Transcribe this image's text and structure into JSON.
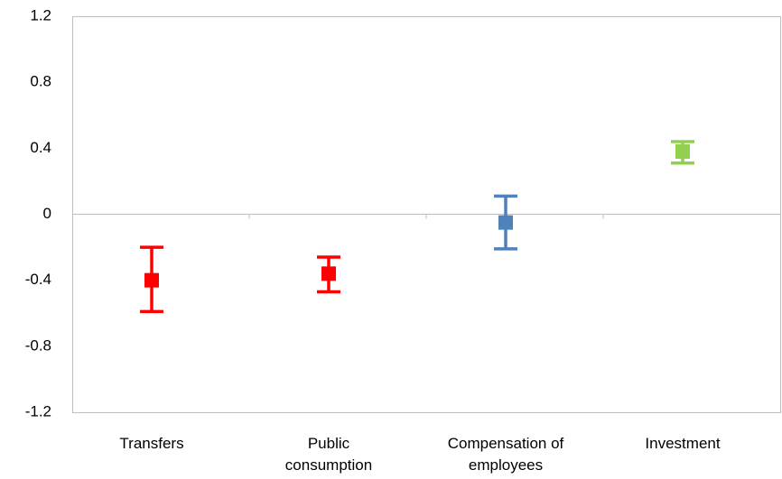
{
  "chart_data": {
    "type": "errorbar",
    "categories": [
      "Transfers",
      "Public consumption",
      "Compensation of employees",
      "Investment"
    ],
    "values": [
      -0.4,
      -0.36,
      -0.05,
      0.38
    ],
    "low": [
      -0.59,
      -0.47,
      -0.21,
      0.31
    ],
    "high": [
      -0.2,
      -0.26,
      0.11,
      0.44
    ],
    "colors": [
      "#ff0000",
      "#ff0000",
      "#4f81bd",
      "#92d050"
    ],
    "ylim": [
      -1.2,
      1.2
    ],
    "yticks": [
      -1.2,
      -0.8,
      -0.4,
      0,
      0.4,
      0.8,
      1.2
    ],
    "grid": false
  }
}
